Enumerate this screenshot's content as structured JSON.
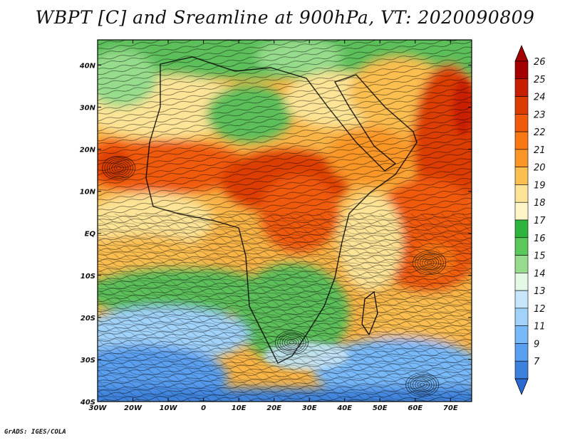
{
  "title": "WBPT [C] and Sreamline at 900hPa, VT: 2020090809",
  "credit": "GrADS: IGES/COLA",
  "map": {
    "lon_range": [
      -30,
      76
    ],
    "lat_range": [
      -40,
      46
    ],
    "lon_ticks": [
      {
        "value": -30,
        "label": "30W"
      },
      {
        "value": -20,
        "label": "20W"
      },
      {
        "value": -10,
        "label": "10W"
      },
      {
        "value": 0,
        "label": "0"
      },
      {
        "value": 10,
        "label": "10E"
      },
      {
        "value": 20,
        "label": "20E"
      },
      {
        "value": 30,
        "label": "30E"
      },
      {
        "value": 40,
        "label": "40E"
      },
      {
        "value": 50,
        "label": "50E"
      },
      {
        "value": 60,
        "label": "60E"
      },
      {
        "value": 70,
        "label": "70E"
      }
    ],
    "lat_ticks": [
      {
        "value": 40,
        "label": "40N"
      },
      {
        "value": 30,
        "label": "30N"
      },
      {
        "value": 20,
        "label": "20N"
      },
      {
        "value": 10,
        "label": "10N"
      },
      {
        "value": 0,
        "label": "EQ"
      },
      {
        "value": -10,
        "label": "10S"
      },
      {
        "value": -20,
        "label": "20S"
      },
      {
        "value": -30,
        "label": "30S"
      },
      {
        "value": -40,
        "label": "40S"
      }
    ],
    "vortices": [
      {
        "name": "atlantic-low",
        "lon": -24,
        "lat": 15.5
      },
      {
        "name": "indian-ocean-high",
        "lon": 64,
        "lat": -7
      },
      {
        "name": "southern-africa-high",
        "lon": 25,
        "lat": -26
      },
      {
        "name": "south-indian-ocean-low",
        "lon": 62,
        "lat": -36
      }
    ]
  },
  "colorbar": {
    "levels": [
      {
        "label": "26",
        "color": "#a50000"
      },
      {
        "label": "25",
        "color": "#c81e00"
      },
      {
        "label": "24",
        "color": "#dc3c00"
      },
      {
        "label": "23",
        "color": "#f05a0a"
      },
      {
        "label": "22",
        "color": "#fa7814"
      },
      {
        "label": "21",
        "color": "#fa9628"
      },
      {
        "label": "20",
        "color": "#fbbe50"
      },
      {
        "label": "19",
        "color": "#fde496"
      },
      {
        "label": "18",
        "color": "#fff5c8"
      },
      {
        "label": "17",
        "color": "#2eb43c"
      },
      {
        "label": "16",
        "color": "#5ac85a"
      },
      {
        "label": "15",
        "color": "#96dc8c"
      },
      {
        "label": "14",
        "color": "#e4fae6"
      },
      {
        "label": "13",
        "color": "#c8e6fa"
      },
      {
        "label": "12",
        "color": "#a0d2fa"
      },
      {
        "label": "11",
        "color": "#78b9fa"
      },
      {
        "label": "9",
        "color": "#5a9ff0"
      },
      {
        "label": "7",
        "color": "#3c82dc"
      }
    ],
    "top_color": "#a50000",
    "bottom_color": "#2a6ad2"
  }
}
